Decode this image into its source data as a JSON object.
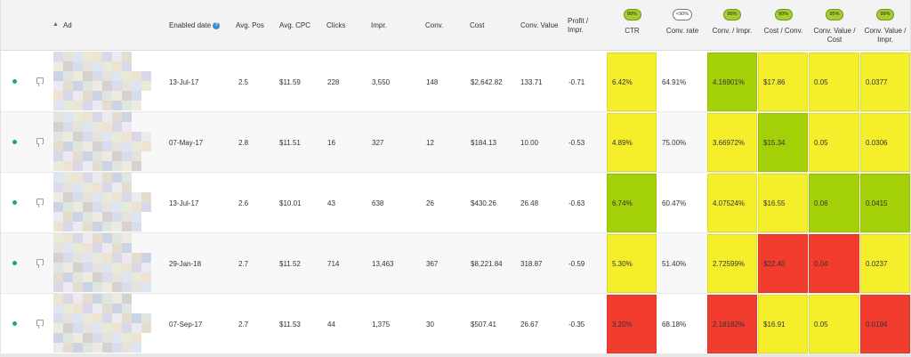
{
  "columns": {
    "ad": "Ad",
    "enabled_date": "Enabled date",
    "avg_pos": "Avg. Pos",
    "avg_cpc": "Avg. CPC",
    "clicks": "Clicks",
    "impr": "Impr.",
    "conv": "Conv.",
    "cost": "Cost",
    "conv_value": "Conv. Value",
    "profit_impr_1": "Profit /",
    "profit_impr_2": "Impr.",
    "ctr": "CTR",
    "conv_rate": "Conv. rate",
    "conv_impr": "Conv. / Impr.",
    "cost_conv": "Cost / Conv.",
    "conv_value_cost_1": "Conv. Value /",
    "conv_value_cost_2": "Cost",
    "conv_value_impr_1": "Conv. Value /",
    "conv_value_impr_2": "Impr."
  },
  "badges": {
    "ctr": "99%",
    "conv_rate": "<90%",
    "conv_impr": "99%",
    "cost_conv": "90%",
    "conv_value_cost": "95%",
    "conv_value_impr": "99%"
  },
  "icons": {
    "sort": "sort-up-icon",
    "help": "help-icon",
    "status": "status-dot-icon",
    "comment": "comment-icon"
  },
  "colors": {
    "green": "#a4d007",
    "yellow": "#f4ef2a",
    "red": "#f13c2e",
    "status": "#1fa86a"
  },
  "rows": [
    {
      "enabled_date": "13-Jul-17",
      "avg_pos": "2.5",
      "avg_cpc": "$11.59",
      "clicks": "228",
      "impr": "3,550",
      "conv": "148",
      "cost": "$2,642.82",
      "conv_value": "133.71",
      "profit_impr": "-0.71",
      "ctr": "6.42%",
      "conv_rate": "64.91%",
      "conv_impr": "4.16901%",
      "cost_conv": "$17.86",
      "conv_value_cost": "0.05",
      "conv_value_impr": "0.0377"
    },
    {
      "enabled_date": "07-May-17",
      "avg_pos": "2.8",
      "avg_cpc": "$11.51",
      "clicks": "16",
      "impr": "327",
      "conv": "12",
      "cost": "$184.13",
      "conv_value": "10.00",
      "profit_impr": "-0.53",
      "ctr": "4.89%",
      "conv_rate": "75.00%",
      "conv_impr": "3.66972%",
      "cost_conv": "$15.34",
      "conv_value_cost": "0.05",
      "conv_value_impr": "0.0306"
    },
    {
      "enabled_date": "13-Jul-17",
      "avg_pos": "2.6",
      "avg_cpc": "$10.01",
      "clicks": "43",
      "impr": "638",
      "conv": "26",
      "cost": "$430.26",
      "conv_value": "26.48",
      "profit_impr": "-0.63",
      "ctr": "6.74%",
      "conv_rate": "60.47%",
      "conv_impr": "4.07524%",
      "cost_conv": "$16.55",
      "conv_value_cost": "0.06",
      "conv_value_impr": "0.0415"
    },
    {
      "enabled_date": "29-Jan-18",
      "avg_pos": "2.7",
      "avg_cpc": "$11.52",
      "clicks": "714",
      "impr": "13,463",
      "conv": "367",
      "cost": "$8,221.84",
      "conv_value": "318.87",
      "profit_impr": "-0.59",
      "ctr": "5.30%",
      "conv_rate": "51.40%",
      "conv_impr": "2.72599%",
      "cost_conv": "$22.40",
      "conv_value_cost": "0.04",
      "conv_value_impr": "0.0237"
    },
    {
      "enabled_date": "07-Sep-17",
      "avg_pos": "2.7",
      "avg_cpc": "$11.53",
      "clicks": "44",
      "impr": "1,375",
      "conv": "30",
      "cost": "$507.41",
      "conv_value": "26.67",
      "profit_impr": "-0.35",
      "ctr": "3.20%",
      "conv_rate": "68.18%",
      "conv_impr": "2.18182%",
      "cost_conv": "$16.91",
      "conv_value_cost": "0.05",
      "conv_value_impr": "0.0194"
    }
  ],
  "heat": [
    {
      "ctr": "yellow",
      "conv_impr": "green",
      "cost_conv": "yellow",
      "conv_value_cost": "yellow",
      "conv_value_impr": "yellow"
    },
    {
      "ctr": "yellow",
      "conv_impr": "yellow",
      "cost_conv": "green",
      "conv_value_cost": "yellow",
      "conv_value_impr": "yellow"
    },
    {
      "ctr": "green",
      "conv_impr": "yellow",
      "cost_conv": "yellow",
      "conv_value_cost": "green",
      "conv_value_impr": "green"
    },
    {
      "ctr": "yellow",
      "conv_impr": "yellow",
      "cost_conv": "red",
      "conv_value_cost": "red",
      "conv_value_impr": "yellow"
    },
    {
      "ctr": "red",
      "conv_impr": "red",
      "cost_conv": "yellow",
      "conv_value_cost": "yellow",
      "conv_value_impr": "red"
    }
  ]
}
